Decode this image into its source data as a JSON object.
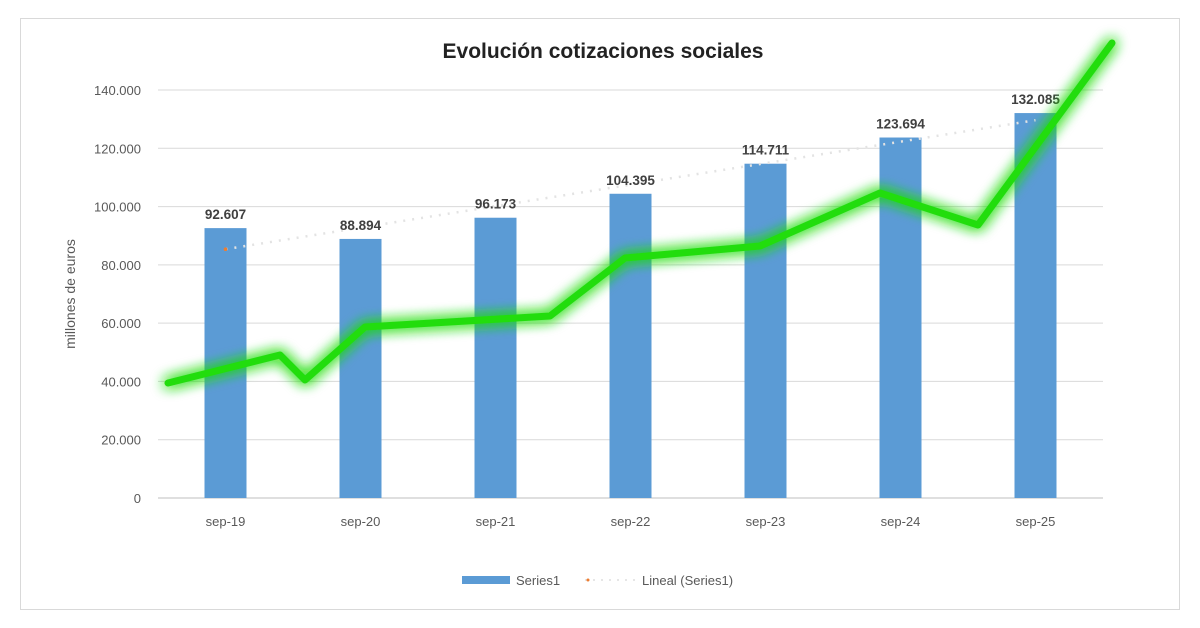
{
  "chart_data": {
    "type": "bar",
    "title": "Evolución cotizaciones sociales",
    "xlabel": "",
    "ylabel": "millones de euros",
    "ylim": [
      0,
      140000
    ],
    "yticks": [
      0,
      20000,
      40000,
      60000,
      80000,
      100000,
      120000,
      140000
    ],
    "ytick_labels": [
      "0",
      "20.000",
      "40.000",
      "60.000",
      "80.000",
      "100.000",
      "120.000",
      "140.000"
    ],
    "categories": [
      "sep-19",
      "sep-20",
      "sep-21",
      "sep-22",
      "sep-23",
      "sep-24",
      "sep-25"
    ],
    "series": [
      {
        "name": "Series1",
        "values": [
          92607,
          88894,
          96173,
          104395,
          114711,
          123694,
          132085
        ],
        "data_labels": [
          "92.607",
          "88.894",
          "96.173",
          "104.395",
          "114.711",
          "123.694",
          "132.085"
        ],
        "color": "#5b9bd5"
      }
    ],
    "trendline": {
      "name": "Lineal (Series1)",
      "type": "linear",
      "color": "#ed7d31"
    },
    "grid": true,
    "legend": "bottom",
    "overlay_color": "#22dd11"
  }
}
